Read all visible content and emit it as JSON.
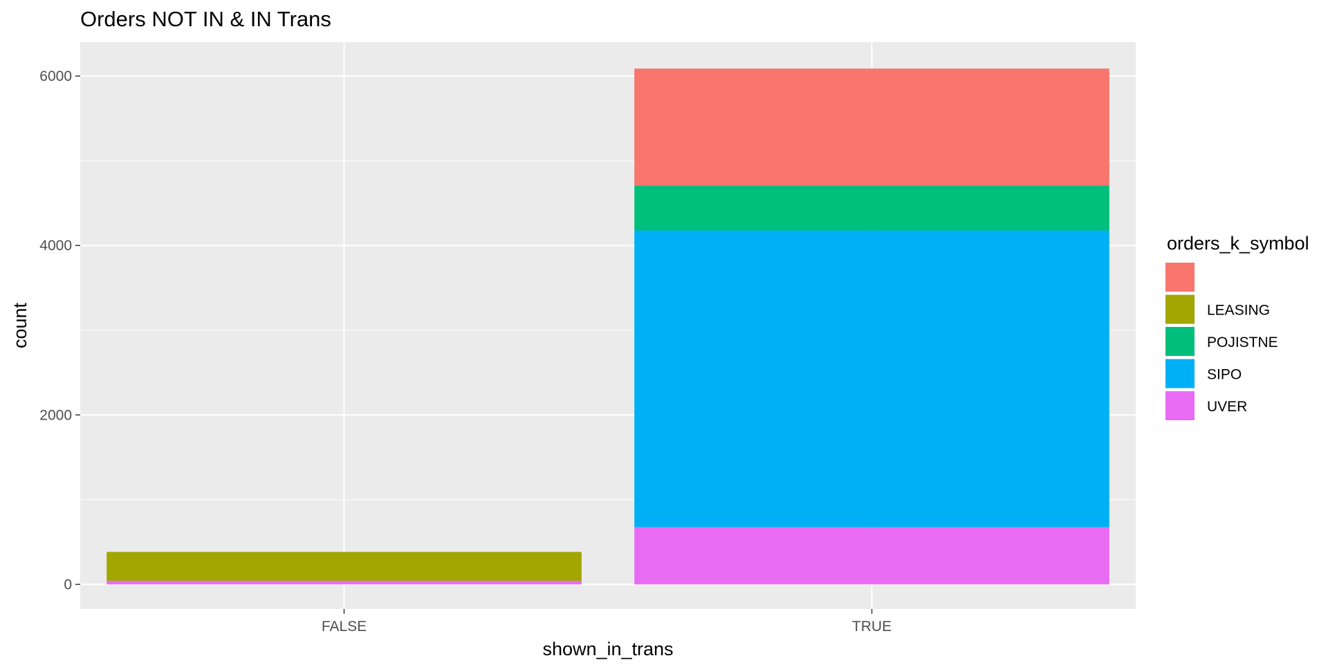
{
  "chart_data": {
    "type": "bar",
    "stacked": true,
    "title": "Orders NOT IN & IN Trans",
    "xlabel": "shown_in_trans",
    "ylabel": "count",
    "categories": [
      "FALSE",
      "TRUE"
    ],
    "ylim": [
      -290,
      6400
    ],
    "yticks": [
      0,
      2000,
      4000,
      6000
    ],
    "grid": true,
    "legend": {
      "title": "orders_k_symbol",
      "placement": "right"
    },
    "series": [
      {
        "name": "UVER",
        "color": "#E76BF3",
        "values": [
          42,
          675
        ]
      },
      {
        "name": "SIPO",
        "color": "#00B0F6",
        "values": [
          0,
          3502
        ]
      },
      {
        "name": "POJISTNE",
        "color": "#00BF7D",
        "values": [
          0,
          532
        ]
      },
      {
        "name": "LEASING",
        "color": "#A3A500",
        "values": [
          341,
          0
        ]
      },
      {
        "name": "",
        "color": "#F8766D",
        "values": [
          0,
          1379
        ]
      }
    ],
    "legend_order": [
      "",
      "LEASING",
      "POJISTNE",
      "SIPO",
      "UVER"
    ]
  }
}
